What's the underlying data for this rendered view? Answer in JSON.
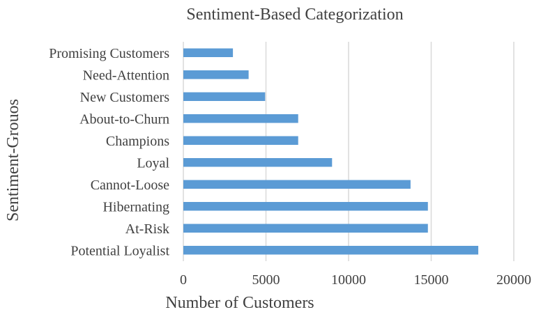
{
  "chart_data": {
    "type": "bar",
    "orientation": "horizontal",
    "title": "Sentiment-Based Categorization",
    "xlabel": "Number of Customers",
    "ylabel": "Sentiment-Grouos",
    "xlim": [
      0,
      20000
    ],
    "xticks": [
      "0",
      "5000",
      "10000",
      "15000",
      "20000"
    ],
    "grid": true,
    "categories": [
      "Potential Loyalist",
      "At-Risk",
      "Hibernating",
      "Cannot-Loose",
      "Loyal",
      "Champions",
      "About-to-Churn",
      "New Customers",
      "Need-Attention",
      "Promising Customers"
    ],
    "values": [
      17850,
      14800,
      14800,
      13750,
      9000,
      6950,
      6950,
      4950,
      3950,
      3000
    ],
    "bar_color": "#5b9bd5"
  }
}
